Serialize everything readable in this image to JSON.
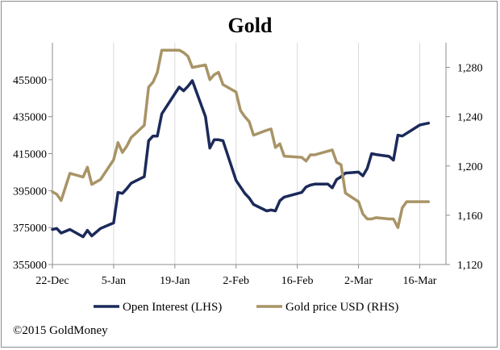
{
  "chart_data": {
    "type": "line",
    "title": "Gold",
    "x_ticks": [
      "22-Dec",
      "5-Jan",
      "19-Jan",
      "2-Feb",
      "16-Feb",
      "2-Mar",
      "16-Mar"
    ],
    "y_left": {
      "label": "",
      "ylim": [
        355000,
        475000
      ],
      "ticks": [
        "355000",
        "375000",
        "395000",
        "415000",
        "435000",
        "455000"
      ]
    },
    "y_right": {
      "label": "",
      "ylim": [
        1120,
        1300
      ],
      "ticks": [
        "1,120",
        "1,160",
        "1,200",
        "1,240",
        "1,280"
      ]
    },
    "grid": "vertical",
    "legend_position": "bottom",
    "series": [
      {
        "name": "Open Interest (LHS)",
        "axis": "left",
        "color": "#1b2a5a",
        "x": [
          "2014-12-22",
          "2014-12-23",
          "2014-12-24",
          "2014-12-26",
          "2014-12-29",
          "2014-12-30",
          "2014-12-31",
          "2015-01-02",
          "2015-01-05",
          "2015-01-06",
          "2015-01-07",
          "2015-01-08",
          "2015-01-09",
          "2015-01-12",
          "2015-01-13",
          "2015-01-14",
          "2015-01-15",
          "2015-01-16",
          "2015-01-20",
          "2015-01-21",
          "2015-01-22",
          "2015-01-23",
          "2015-01-26",
          "2015-01-27",
          "2015-01-28",
          "2015-01-29",
          "2015-01-30",
          "2015-02-02",
          "2015-02-03",
          "2015-02-04",
          "2015-02-05",
          "2015-02-06",
          "2015-02-09",
          "2015-02-10",
          "2015-02-11",
          "2015-02-12",
          "2015-02-13",
          "2015-02-17",
          "2015-02-18",
          "2015-02-19",
          "2015-02-20",
          "2015-02-23",
          "2015-02-24",
          "2015-02-25",
          "2015-02-26",
          "2015-02-27",
          "2015-03-02",
          "2015-03-03",
          "2015-03-04",
          "2015-03-05",
          "2015-03-06",
          "2015-03-09",
          "2015-03-10",
          "2015-03-11",
          "2015-03-12",
          "2015-03-13",
          "2015-03-16",
          "2015-03-17",
          "2015-03-18"
        ],
        "values": [
          374000,
          374500,
          372000,
          374000,
          370000,
          373500,
          370500,
          374500,
          377500,
          394000,
          393500,
          396000,
          399000,
          402500,
          422000,
          424500,
          424500,
          436500,
          451000,
          449000,
          451500,
          454500,
          435000,
          418000,
          422500,
          422500,
          422000,
          400500,
          397000,
          393500,
          391000,
          387500,
          384000,
          384500,
          384000,
          389500,
          391500,
          394000,
          397000,
          398000,
          398500,
          398500,
          396500,
          401000,
          402500,
          404500,
          405000,
          403000,
          407000,
          415000,
          414500,
          413500,
          411500,
          425000,
          424500,
          426000,
          430500,
          431000,
          431500
        ],
        "values_note": ""
      },
      {
        "name": "Gold price USD (RHS)",
        "axis": "right",
        "color": "#a89466",
        "x": [
          "2014-12-22",
          "2014-12-23",
          "2014-12-24",
          "2014-12-26",
          "2014-12-29",
          "2014-12-30",
          "2014-12-31",
          "2015-01-02",
          "2015-01-05",
          "2015-01-06",
          "2015-01-07",
          "2015-01-08",
          "2015-01-09",
          "2015-01-12",
          "2015-01-13",
          "2015-01-14",
          "2015-01-15",
          "2015-01-16",
          "2015-01-20",
          "2015-01-21",
          "2015-01-22",
          "2015-01-23",
          "2015-01-26",
          "2015-01-27",
          "2015-01-28",
          "2015-01-29",
          "2015-01-30",
          "2015-02-02",
          "2015-02-03",
          "2015-02-04",
          "2015-02-05",
          "2015-02-06",
          "2015-02-09",
          "2015-02-10",
          "2015-02-11",
          "2015-02-12",
          "2015-02-13",
          "2015-02-17",
          "2015-02-18",
          "2015-02-19",
          "2015-02-20",
          "2015-02-23",
          "2015-02-24",
          "2015-02-25",
          "2015-02-26",
          "2015-02-27",
          "2015-03-02",
          "2015-03-03",
          "2015-03-04",
          "2015-03-05",
          "2015-03-06",
          "2015-03-09",
          "2015-03-10",
          "2015-03-11",
          "2015-03-12",
          "2015-03-13",
          "2015-03-16",
          "2015-03-17",
          "2015-03-18"
        ],
        "values": [
          1179,
          1177,
          1172,
          1194,
          1191,
          1199,
          1185,
          1189,
          1205,
          1219,
          1211,
          1216,
          1223,
          1233,
          1264,
          1268,
          1276,
          1294,
          1294,
          1292,
          1289,
          1280,
          1282,
          1270,
          1274,
          1276,
          1266,
          1260,
          1245,
          1240,
          1236,
          1225,
          1229,
          1230,
          1215,
          1218,
          1208,
          1207,
          1204,
          1209,
          1209,
          1212,
          1213,
          1203,
          1201,
          1178,
          1171,
          1161,
          1157,
          1157,
          1158,
          1157,
          1157,
          1150,
          1166,
          1171,
          1171,
          1171,
          1171
        ],
        "values_note": ""
      }
    ]
  },
  "footer": "©2015 GoldMoney",
  "legend": {
    "item1": "Open Interest (LHS)",
    "item2": "Gold price USD (RHS)"
  }
}
